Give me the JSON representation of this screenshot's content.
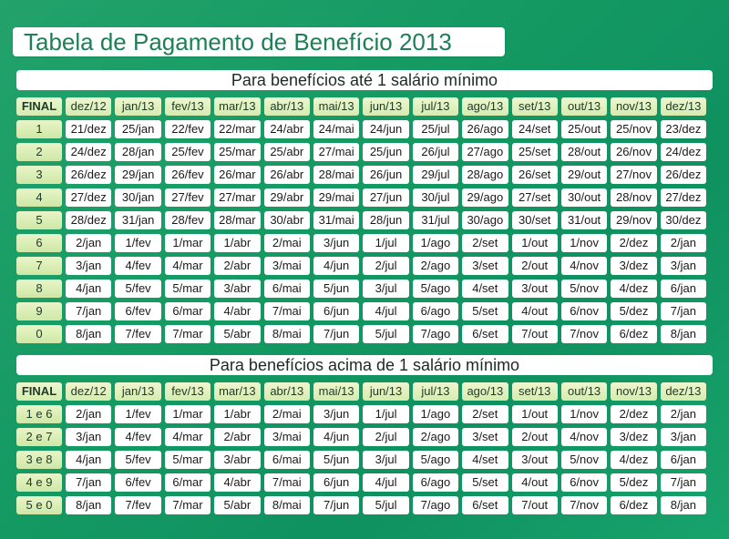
{
  "title": "Tabela de Pagamento de Benefício 2013",
  "section1": {
    "heading": "Para benefícios até 1 salário mínimo",
    "corner": "FINAL",
    "months": [
      "dez/12",
      "jan/13",
      "fev/13",
      "mar/13",
      "abr/13",
      "mai/13",
      "jun/13",
      "jul/13",
      "ago/13",
      "set/13",
      "out/13",
      "nov/13",
      "dez/13"
    ],
    "rows": [
      {
        "label": "1",
        "cells": [
          "21/dez",
          "25/jan",
          "22/fev",
          "22/mar",
          "24/abr",
          "24/mai",
          "24/jun",
          "25/jul",
          "26/ago",
          "24/set",
          "25/out",
          "25/nov",
          "23/dez"
        ]
      },
      {
        "label": "2",
        "cells": [
          "24/dez",
          "28/jan",
          "25/fev",
          "25/mar",
          "25/abr",
          "27/mai",
          "25/jun",
          "26/jul",
          "27/ago",
          "25/set",
          "28/out",
          "26/nov",
          "24/dez"
        ]
      },
      {
        "label": "3",
        "cells": [
          "26/dez",
          "29/jan",
          "26/fev",
          "26/mar",
          "26/abr",
          "28/mai",
          "26/jun",
          "29/jul",
          "28/ago",
          "26/set",
          "29/out",
          "27/nov",
          "26/dez"
        ]
      },
      {
        "label": "4",
        "cells": [
          "27/dez",
          "30/jan",
          "27/fev",
          "27/mar",
          "29/abr",
          "29/mai",
          "27/jun",
          "30/jul",
          "29/ago",
          "27/set",
          "30/out",
          "28/nov",
          "27/dez"
        ]
      },
      {
        "label": "5",
        "cells": [
          "28/dez",
          "31/jan",
          "28/fev",
          "28/mar",
          "30/abr",
          "31/mai",
          "28/jun",
          "31/jul",
          "30/ago",
          "30/set",
          "31/out",
          "29/nov",
          "30/dez"
        ]
      },
      {
        "label": "6",
        "cells": [
          "2/jan",
          "1/fev",
          "1/mar",
          "1/abr",
          "2/mai",
          "3/jun",
          "1/jul",
          "1/ago",
          "2/set",
          "1/out",
          "1/nov",
          "2/dez",
          "2/jan"
        ]
      },
      {
        "label": "7",
        "cells": [
          "3/jan",
          "4/fev",
          "4/mar",
          "2/abr",
          "3/mai",
          "4/jun",
          "2/jul",
          "2/ago",
          "3/set",
          "2/out",
          "4/nov",
          "3/dez",
          "3/jan"
        ]
      },
      {
        "label": "8",
        "cells": [
          "4/jan",
          "5/fev",
          "5/mar",
          "3/abr",
          "6/mai",
          "5/jun",
          "3/jul",
          "5/ago",
          "4/set",
          "3/out",
          "5/nov",
          "4/dez",
          "6/jan"
        ]
      },
      {
        "label": "9",
        "cells": [
          "7/jan",
          "6/fev",
          "6/mar",
          "4/abr",
          "7/mai",
          "6/jun",
          "4/jul",
          "6/ago",
          "5/set",
          "4/out",
          "6/nov",
          "5/dez",
          "7/jan"
        ]
      },
      {
        "label": "0",
        "cells": [
          "8/jan",
          "7/fev",
          "7/mar",
          "5/abr",
          "8/mai",
          "7/jun",
          "5/jul",
          "7/ago",
          "6/set",
          "7/out",
          "7/nov",
          "6/dez",
          "8/jan"
        ]
      }
    ]
  },
  "section2": {
    "heading": "Para benefícios acima de 1 salário mínimo",
    "corner": "FINAL",
    "months": [
      "dez/12",
      "jan/13",
      "fev/13",
      "mar/13",
      "abr/13",
      "mai/13",
      "jun/13",
      "jul/13",
      "ago/13",
      "set/13",
      "out/13",
      "nov/13",
      "dez/13"
    ],
    "rows": [
      {
        "label": "1 e 6",
        "cells": [
          "2/jan",
          "1/fev",
          "1/mar",
          "1/abr",
          "2/mai",
          "3/jun",
          "1/jul",
          "1/ago",
          "2/set",
          "1/out",
          "1/nov",
          "2/dez",
          "2/jan"
        ]
      },
      {
        "label": "2 e 7",
        "cells": [
          "3/jan",
          "4/fev",
          "4/mar",
          "2/abr",
          "3/mai",
          "4/jun",
          "2/jul",
          "2/ago",
          "3/set",
          "2/out",
          "4/nov",
          "3/dez",
          "3/jan"
        ]
      },
      {
        "label": "3 e 8",
        "cells": [
          "4/jan",
          "5/fev",
          "5/mar",
          "3/abr",
          "6/mai",
          "5/jun",
          "3/jul",
          "5/ago",
          "4/set",
          "3/out",
          "5/nov",
          "4/dez",
          "6/jan"
        ]
      },
      {
        "label": "4 e 9",
        "cells": [
          "7/jan",
          "6/fev",
          "6/mar",
          "4/abr",
          "7/mai",
          "6/jun",
          "4/jul",
          "6/ago",
          "5/set",
          "4/out",
          "6/nov",
          "5/dez",
          "7/jan"
        ]
      },
      {
        "label": "5 e 0",
        "cells": [
          "8/jan",
          "7/fev",
          "7/mar",
          "5/abr",
          "8/mai",
          "7/jun",
          "5/jul",
          "7/ago",
          "6/set",
          "7/out",
          "7/nov",
          "6/dez",
          "8/jan"
        ]
      }
    ]
  }
}
